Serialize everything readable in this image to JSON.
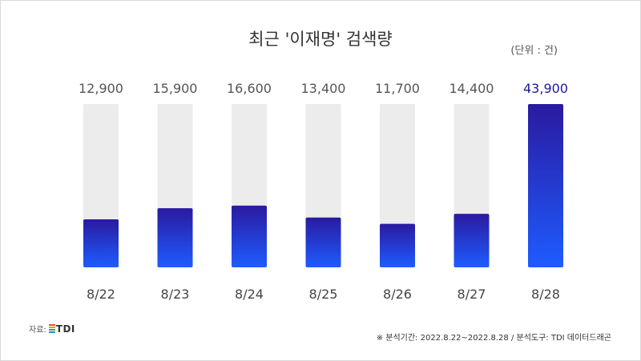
{
  "title": "최근 '이재명' 검색량",
  "unit_label": "(단위 : 건)",
  "source": {
    "label": "자료:",
    "logo_text": "TDI",
    "logo_colors": [
      "#e74c3c",
      "#f39c12",
      "#27ae60",
      "#2e86de"
    ]
  },
  "footnote": "※ 분석기간: 2022.8.22~2022.8.28  / 분석도구: TDI 데이터드래곤",
  "colors": {
    "track": "#ececec",
    "bar_top": "#2a1aa0",
    "bar_bottom": "#1e5cff",
    "highlight_label": "#1c1a9a"
  },
  "chart_data": {
    "type": "bar",
    "title": "최근 '이재명' 검색량",
    "xlabel": "",
    "ylabel": "",
    "categories": [
      "8/22",
      "8/23",
      "8/24",
      "8/25",
      "8/26",
      "8/27",
      "8/28"
    ],
    "values": [
      12900,
      15900,
      16600,
      13400,
      11700,
      14400,
      43900
    ],
    "value_labels": [
      "12,900",
      "15,900",
      "16,600",
      "13,400",
      "11,700",
      "14,400",
      "43,900"
    ],
    "highlight_index": 6,
    "ylim": [
      0,
      43900
    ],
    "grid": false,
    "legend": "none"
  }
}
